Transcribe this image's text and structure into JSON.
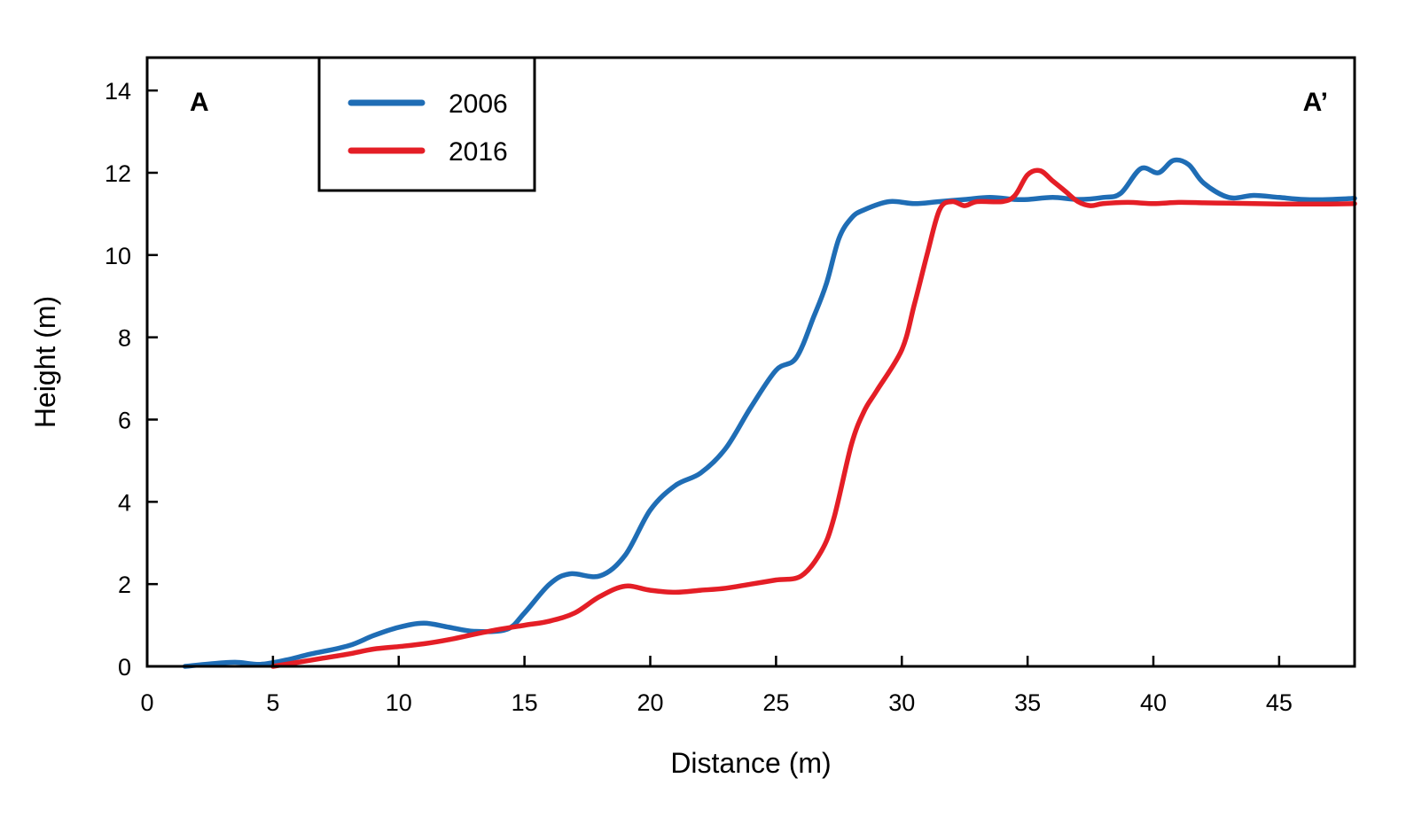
{
  "chart_data": {
    "type": "line",
    "title": "",
    "xlabel": "Distance (m)",
    "ylabel": "Height (m)",
    "xlim": [
      0,
      48
    ],
    "ylim": [
      0,
      14.8
    ],
    "xticks": [
      0,
      5,
      10,
      15,
      20,
      25,
      30,
      35,
      40,
      45
    ],
    "yticks": [
      0,
      2,
      4,
      6,
      8,
      10,
      12,
      14
    ],
    "grid": false,
    "legend_position": "top-left",
    "annotations": {
      "left": "A",
      "right": "A’"
    },
    "series": [
      {
        "name": "2006",
        "color": "#1f6db5",
        "x": [
          1.5,
          2.5,
          3.5,
          4.5,
          5.5,
          6.5,
          8,
          9,
          10,
          11,
          12,
          13,
          14.3,
          15,
          16,
          16.8,
          18,
          19,
          20,
          21,
          22,
          23,
          24,
          25,
          25.8,
          26.5,
          27,
          27.5,
          28,
          28.5,
          29.5,
          30.5,
          31.5,
          32.5,
          33.5,
          34.5,
          35,
          36,
          37,
          38,
          38.7,
          39.5,
          40.2,
          40.8,
          41.4,
          42,
          43,
          44,
          45,
          46,
          47,
          48
        ],
        "y": [
          0,
          0.06,
          0.1,
          0.05,
          0.15,
          0.3,
          0.5,
          0.75,
          0.95,
          1.05,
          0.95,
          0.85,
          0.9,
          1.3,
          2.0,
          2.25,
          2.2,
          2.7,
          3.8,
          4.4,
          4.7,
          5.3,
          6.3,
          7.2,
          7.5,
          8.5,
          9.3,
          10.4,
          10.9,
          11.1,
          11.3,
          11.25,
          11.3,
          11.35,
          11.4,
          11.35,
          11.35,
          11.4,
          11.35,
          11.4,
          11.5,
          12.1,
          12.0,
          12.3,
          12.2,
          11.75,
          11.4,
          11.45,
          11.4,
          11.35,
          11.35,
          11.38
        ]
      },
      {
        "name": "2016",
        "color": "#e41e26",
        "x": [
          5,
          6,
          7,
          8,
          9,
          10,
          11,
          12,
          13,
          14,
          15,
          16,
          17,
          18,
          19,
          20,
          21,
          22,
          23,
          24,
          25,
          26,
          26.8,
          27.3,
          28,
          28.5,
          29,
          30,
          30.5,
          31,
          31.5,
          32,
          32.5,
          33,
          34,
          34.5,
          35,
          35.5,
          36,
          36.5,
          37,
          37.5,
          38,
          39,
          40,
          41,
          42,
          43,
          44,
          45,
          46,
          47,
          48
        ],
        "y": [
          0,
          0.1,
          0.2,
          0.3,
          0.42,
          0.48,
          0.55,
          0.65,
          0.78,
          0.9,
          1.0,
          1.1,
          1.3,
          1.7,
          1.95,
          1.85,
          1.8,
          1.85,
          1.9,
          2.0,
          2.1,
          2.2,
          2.8,
          3.6,
          5.4,
          6.2,
          6.7,
          7.7,
          8.8,
          10.0,
          11.1,
          11.3,
          11.2,
          11.3,
          11.3,
          11.45,
          11.95,
          12.05,
          11.8,
          11.55,
          11.3,
          11.2,
          11.25,
          11.28,
          11.25,
          11.28,
          11.27,
          11.26,
          11.25,
          11.24,
          11.24,
          11.24,
          11.25
        ]
      }
    ]
  }
}
